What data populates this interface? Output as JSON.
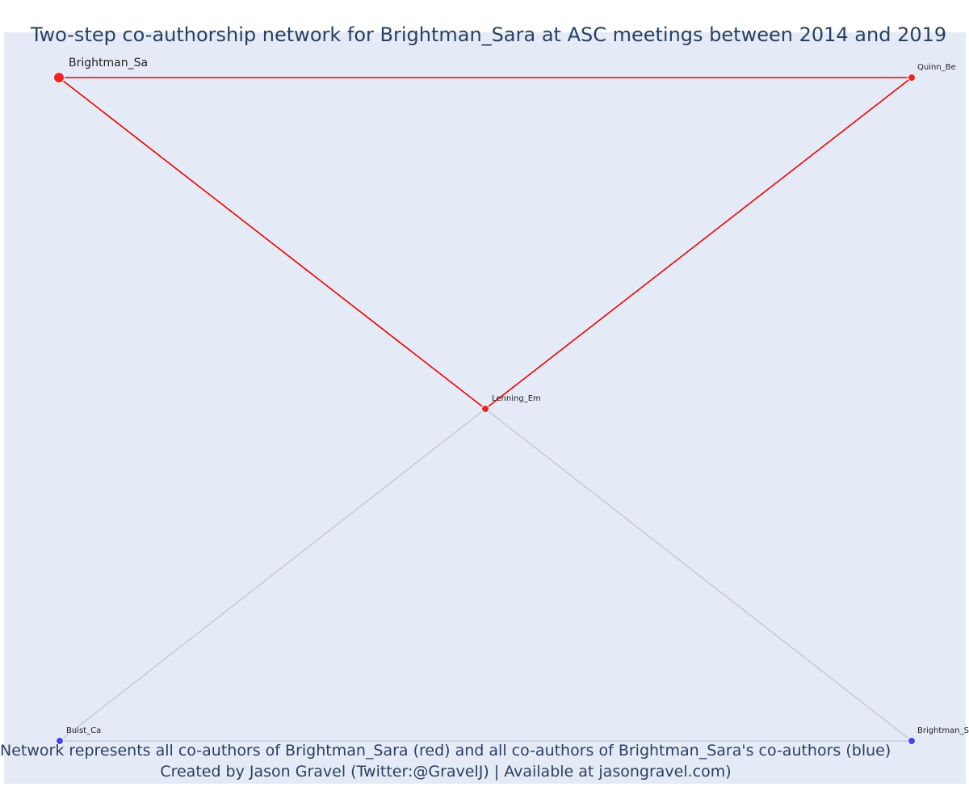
{
  "title": "Two-step co-authorship network for Brightman_Sara at ASC meetings between 2014 and 2019",
  "caption": {
    "line1": "Network represents all co-authors of Brightman_Sara (red) and all co-authors of Brightman_Sara's co-authors (blue)",
    "line2": "Created by Jason Gravel (Twitter:@GravelJ) | Available at jasongravel.com)"
  },
  "colors": {
    "background": "#e5ebf6",
    "first_degree": "#ee2222",
    "second_degree": "#4444ee",
    "first_degree_edge": "#ee0000",
    "second_degree_edge": "#b8bccb"
  },
  "nodes": [
    {
      "id": "Brightman_Sa",
      "label": "Brightman_Sa",
      "group": "ego"
    },
    {
      "id": "Quinn_Be",
      "label": "Quinn_Be",
      "group": "first_degree"
    },
    {
      "id": "Lenning_Em",
      "label": "Lenning_Em",
      "group": "first_degree"
    },
    {
      "id": "Buist_Ca",
      "label": "Buist_Ca",
      "group": "second_degree"
    },
    {
      "id": "Brightman_S",
      "label": "Brightman_S",
      "group": "second_degree"
    }
  ],
  "edges": [
    {
      "source": "Brightman_Sa",
      "target": "Quinn_Be",
      "type": "first_degree"
    },
    {
      "source": "Brightman_Sa",
      "target": "Lenning_Em",
      "type": "first_degree"
    },
    {
      "source": "Quinn_Be",
      "target": "Lenning_Em",
      "type": "first_degree"
    },
    {
      "source": "Lenning_Em",
      "target": "Buist_Ca",
      "type": "second_degree"
    },
    {
      "source": "Lenning_Em",
      "target": "Brightman_S",
      "type": "second_degree"
    },
    {
      "source": "Buist_Ca",
      "target": "Brightman_S",
      "type": "second_degree"
    }
  ]
}
